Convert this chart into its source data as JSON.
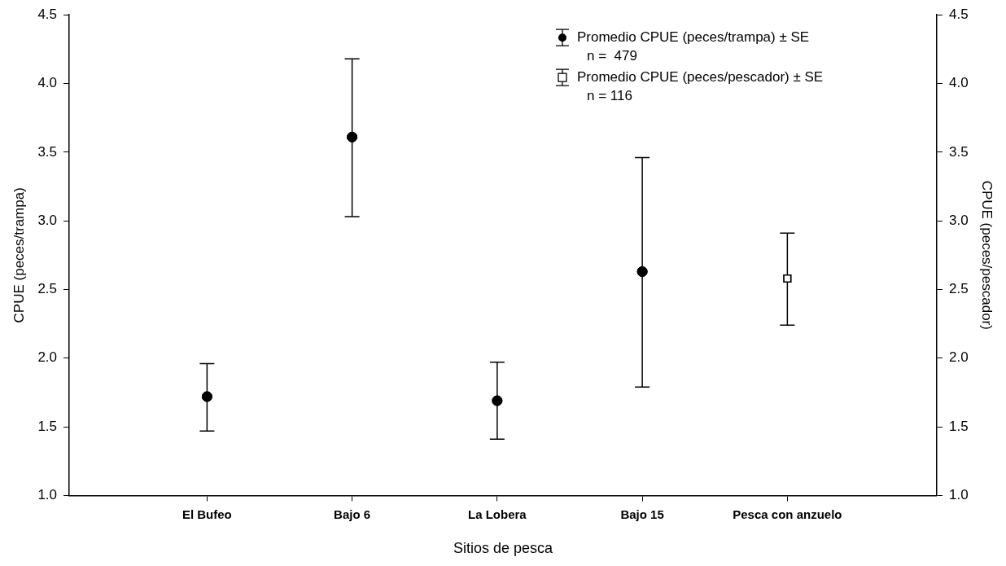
{
  "chart_data": {
    "type": "scatter",
    "xlabel": "Sitios de pesca",
    "ylabel": "CPUE (peces/trampa)",
    "y2label": "CPUE (peces/pescador)",
    "categories": [
      "El Bufeo",
      "Bajo 6",
      "La Lobera",
      "Bajo 15",
      "Pesca con anzuelo"
    ],
    "series": [
      {
        "name": "Promedio CPUE (peces/trampa) ± SE",
        "color": "#000000",
        "marker": "circle",
        "values": [
          1.72,
          3.61,
          1.69,
          2.63,
          null
        ],
        "errors": [
          [
            1.47,
            1.96
          ],
          [
            3.03,
            4.18
          ],
          [
            1.41,
            1.97
          ],
          [
            1.79,
            3.46
          ],
          null
        ]
      },
      {
        "name": "Promedio CPUE (peces/pescador) ± SE",
        "color": "#000000",
        "marker": "square",
        "axis": "y2",
        "values": [
          null,
          null,
          null,
          null,
          2.58
        ],
        "errors": [
          null,
          null,
          null,
          null,
          [
            2.24,
            2.91
          ]
        ]
      }
    ],
    "annotations": [
      "n =  479",
      "n = 116"
    ],
    "ylim": [
      1,
      4.5
    ],
    "yticks": [
      {
        "value": 1,
        "label": "1.0"
      },
      {
        "value": 1.5,
        "label": "1.5"
      },
      {
        "value": 2,
        "label": "2.0"
      },
      {
        "value": 2.5,
        "label": "2.5"
      },
      {
        "value": 3,
        "label": "3.0"
      },
      {
        "value": 3.5,
        "label": "3.5"
      },
      {
        "value": 4,
        "label": "4.0"
      },
      {
        "value": 4.5,
        "label": "4.5"
      }
    ],
    "y2lim": [
      1,
      4.5
    ],
    "y2ticks": [
      {
        "value": 1,
        "label": "1.0"
      },
      {
        "value": 1.5,
        "label": "1.5"
      },
      {
        "value": 2,
        "label": "2.0"
      },
      {
        "value": 2.5,
        "label": "2.5"
      },
      {
        "value": 3,
        "label": "3.0"
      },
      {
        "value": 3.5,
        "label": "3.5"
      },
      {
        "value": 4,
        "label": "4.0"
      },
      {
        "value": 4.5,
        "label": "4.5"
      }
    ],
    "grid": false,
    "legend": "top right"
  }
}
